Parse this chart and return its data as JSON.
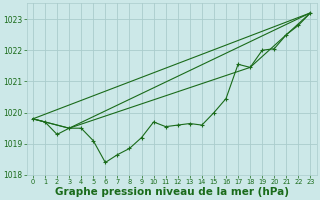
{
  "background_color": "#cce8e8",
  "grid_color": "#aacccc",
  "line_color": "#1a6b1a",
  "xlabel": "Graphe pression niveau de la mer (hPa)",
  "xlabel_fontsize": 7.5,
  "ylim": [
    1018,
    1023.5
  ],
  "xlim": [
    -0.5,
    23.5
  ],
  "yticks": [
    1018,
    1019,
    1020,
    1021,
    1022,
    1023
  ],
  "xticks": [
    0,
    1,
    2,
    3,
    4,
    5,
    6,
    7,
    8,
    9,
    10,
    11,
    12,
    13,
    14,
    15,
    16,
    17,
    18,
    19,
    20,
    21,
    22,
    23
  ],
  "main_series": [
    1019.8,
    1019.7,
    1019.3,
    1019.5,
    1019.5,
    1019.1,
    1018.4,
    1018.65,
    1018.85,
    1019.2,
    1019.7,
    1019.55,
    1019.6,
    1019.65,
    1019.6,
    1020.0,
    1020.45,
    1021.55,
    1021.45,
    1022.0,
    1022.05,
    1022.5,
    1022.8,
    1023.2
  ],
  "fan_lines": [
    {
      "x": [
        0,
        23
      ],
      "y": [
        1019.8,
        1023.2
      ]
    },
    {
      "x": [
        0,
        3,
        23
      ],
      "y": [
        1019.8,
        1019.5,
        1023.2
      ]
    },
    {
      "x": [
        0,
        3,
        18,
        23
      ],
      "y": [
        1019.8,
        1019.5,
        1021.45,
        1023.2
      ]
    }
  ]
}
